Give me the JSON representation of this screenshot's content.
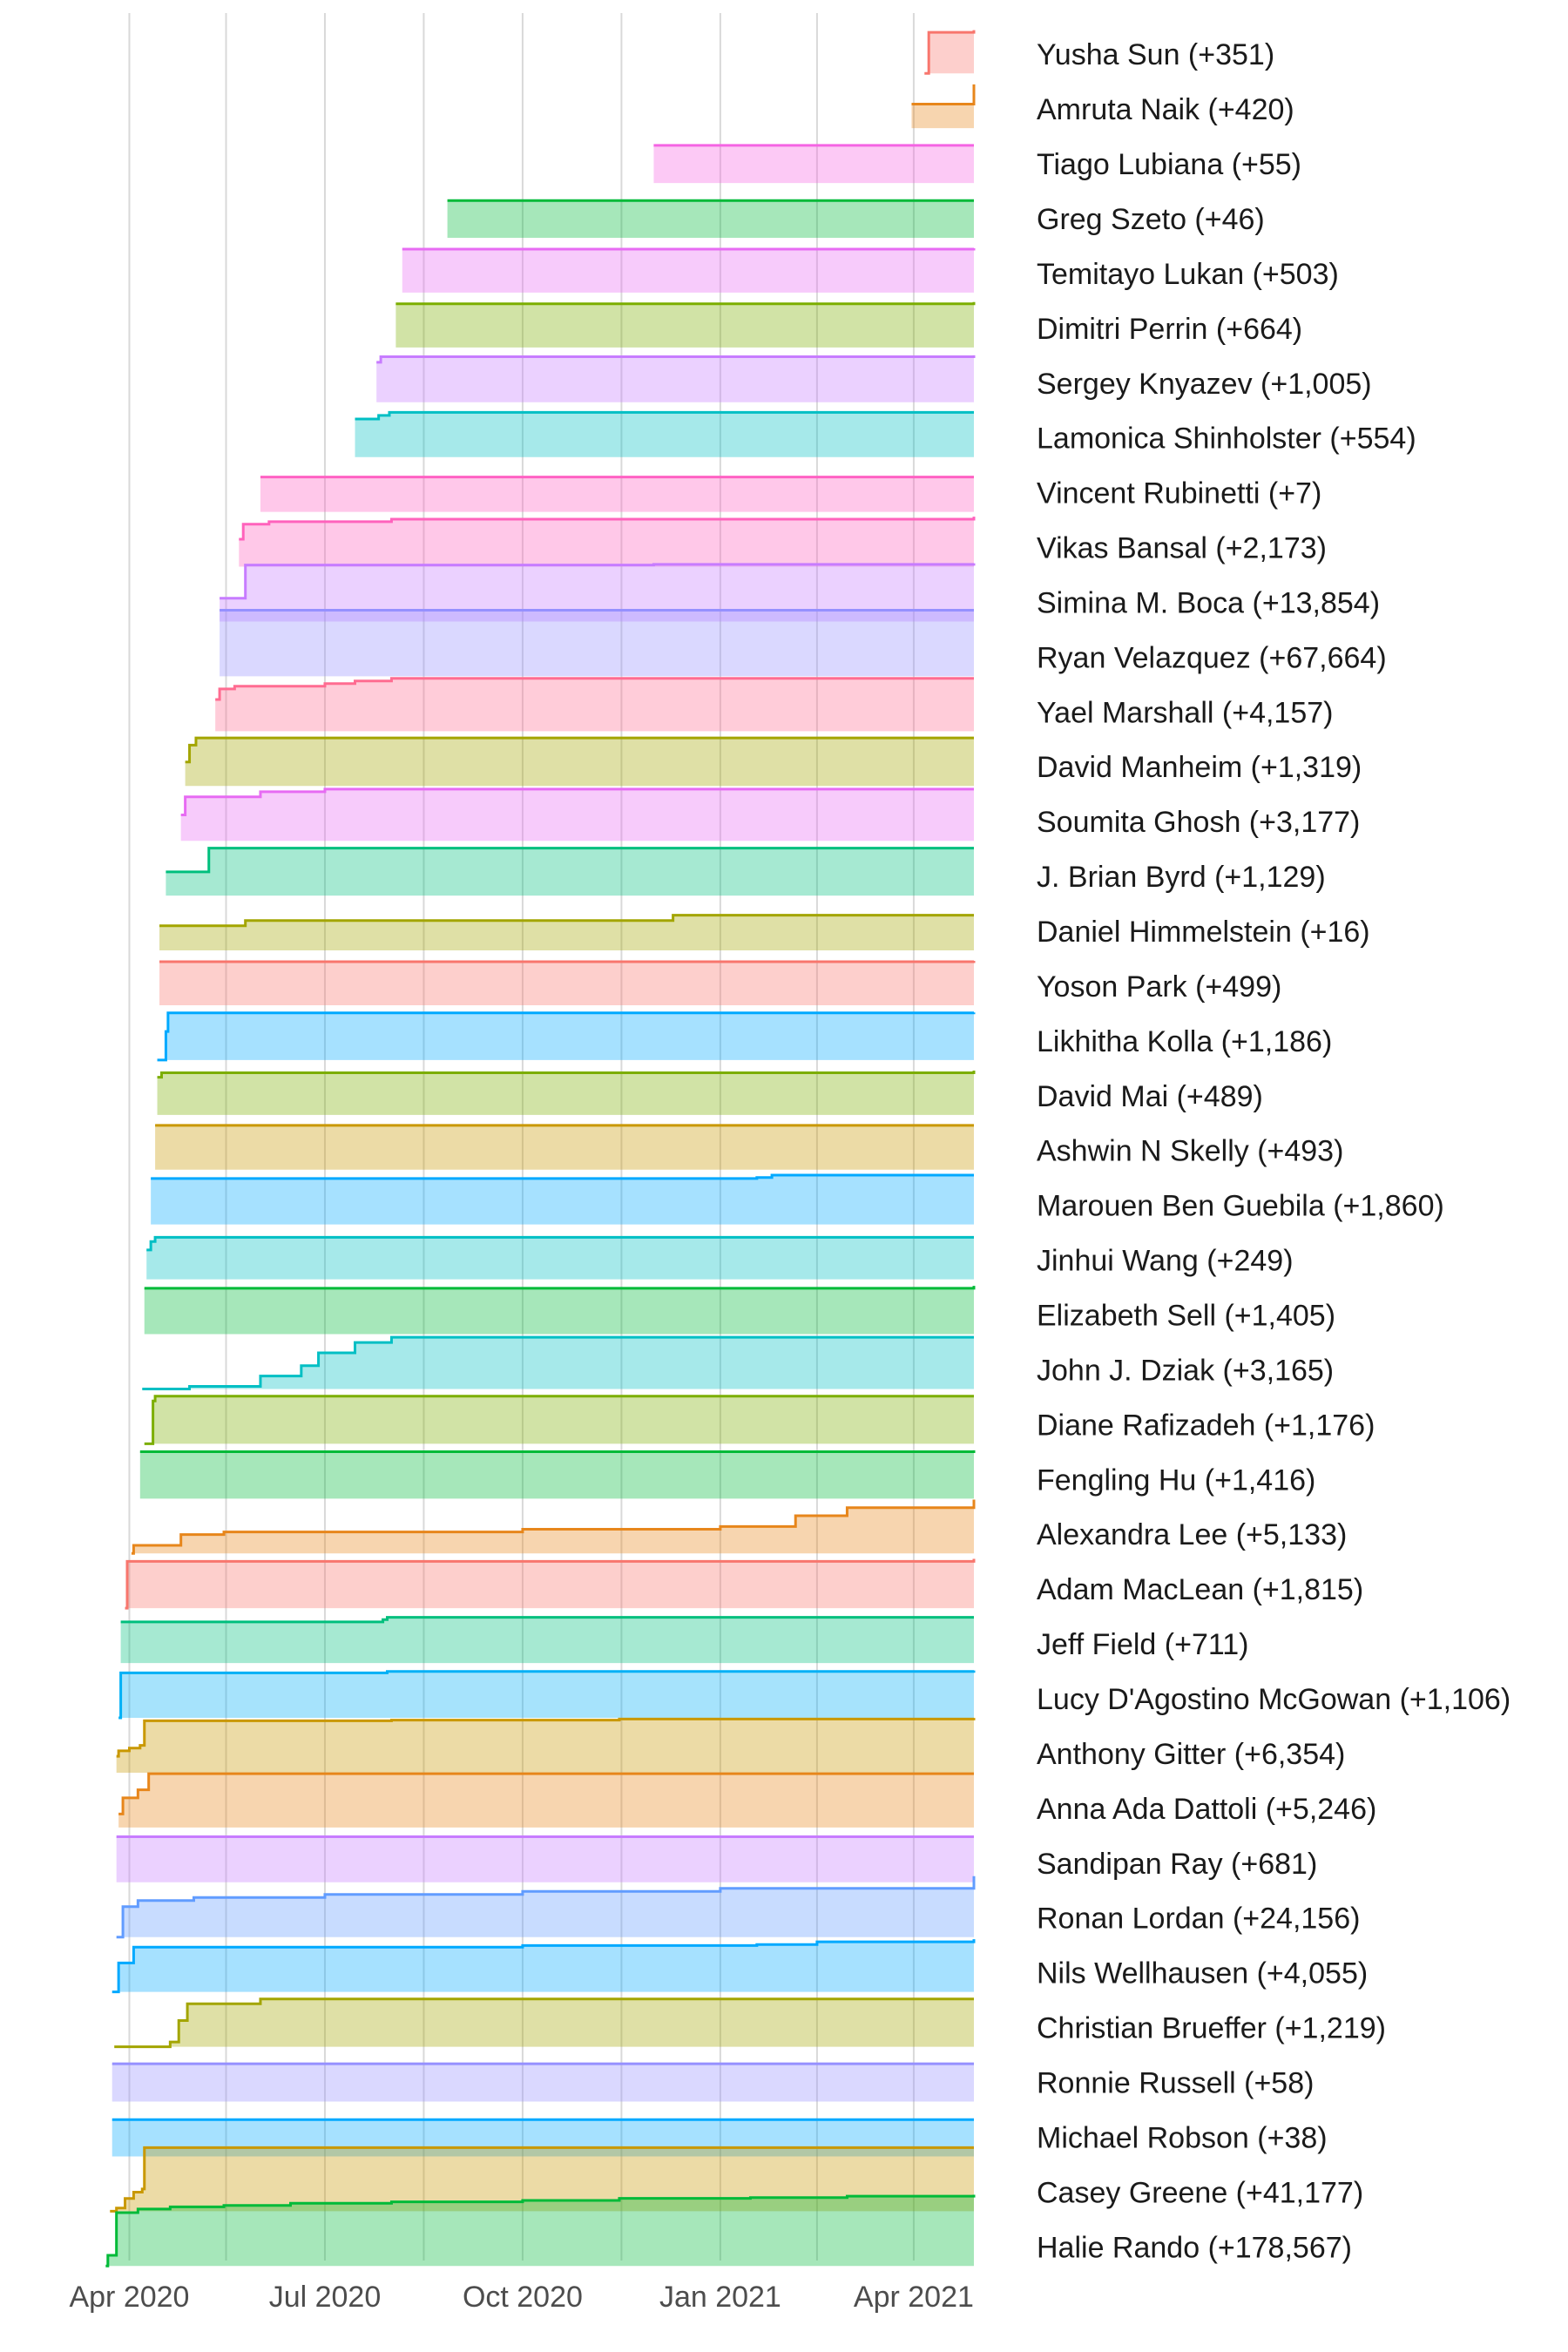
{
  "chart_data": {
    "type": "area",
    "title": "",
    "xlabel": "",
    "ylabel": "",
    "x_axis": {
      "type": "date",
      "range": [
        "2020-03-01",
        "2021-04-29"
      ],
      "ticks": [
        {
          "date": "2020-04-01",
          "label": "Apr 2020"
        },
        {
          "date": "2020-07-01",
          "label": "Jul 2020"
        },
        {
          "date": "2020-10-01",
          "label": "Oct 2020"
        },
        {
          "date": "2021-01-01",
          "label": "Jan 2021"
        },
        {
          "date": "2021-04-01",
          "label": "Apr 2021"
        }
      ],
      "minor_gridlines": [
        "2020-05-16",
        "2020-08-16",
        "2020-11-16",
        "2021-02-15"
      ]
    },
    "grid": true,
    "legend": "labels at right end of each series",
    "series": [
      {
        "name": "Yusha Sun",
        "label": "Yusha Sun (+351)",
        "color": "#F8766D",
        "total": 351,
        "points": [
          [
            "2021-04-06",
            0.0
          ],
          [
            "2021-04-08",
            0.95
          ],
          [
            "2021-04-29",
            1.0
          ]
        ]
      },
      {
        "name": "Amruta Naik",
        "label": "Amruta Naik (+420)",
        "color": "#E7861B",
        "total": 420,
        "points": [
          [
            "2021-03-31",
            0.55
          ],
          [
            "2021-04-29",
            1.0
          ]
        ]
      },
      {
        "name": "Tiago Lubiana",
        "label": "Tiago Lubiana (+55)",
        "color": "#F564E3",
        "total": 55,
        "points": [
          [
            "2020-12-01",
            1.0
          ],
          [
            "2021-04-29",
            1.0
          ]
        ]
      },
      {
        "name": "Greg Szeto",
        "label": "Greg Szeto (+46)",
        "color": "#00BA38",
        "total": 46,
        "points": [
          [
            "2020-08-27",
            1.0
          ],
          [
            "2021-04-29",
            1.0
          ]
        ]
      },
      {
        "name": "Temitayo Lukan",
        "label": "Temitayo Lukan (+503)",
        "color": "#E76BF3",
        "total": 503,
        "points": [
          [
            "2020-08-06",
            0.98
          ],
          [
            "2021-04-29",
            1.0
          ]
        ]
      },
      {
        "name": "Dimitri Perrin",
        "label": "Dimitri Perrin (+664)",
        "color": "#7CAE00",
        "total": 664,
        "points": [
          [
            "2020-08-03",
            0.96
          ],
          [
            "2021-04-29",
            1.0
          ]
        ]
      },
      {
        "name": "Sergey Knyazev",
        "label": "Sergey Knyazev (+1,005)",
        "color": "#C77CFF",
        "total": 1005,
        "points": [
          [
            "2020-07-25",
            0.85
          ],
          [
            "2020-07-27",
            0.97
          ],
          [
            "2021-04-29",
            1.0
          ]
        ]
      },
      {
        "name": "Lamonica Shinholster",
        "label": "Lamonica Shinholster (+554)",
        "color": "#00BFC4",
        "total": 554,
        "points": [
          [
            "2020-07-15",
            0.85
          ],
          [
            "2020-07-26",
            0.93
          ],
          [
            "2020-07-31",
            1.0
          ],
          [
            "2021-04-29",
            1.0
          ]
        ]
      },
      {
        "name": "Vincent Rubinetti",
        "label": "Vincent Rubinetti (+7)",
        "color": "#FF61C3",
        "total": 7,
        "points": [
          [
            "2020-06-01",
            1.0
          ],
          [
            "2021-04-29",
            1.0
          ]
        ]
      },
      {
        "name": "Vikas Bansal",
        "label": "Vikas Bansal (+2,173)",
        "color": "#FF62BC",
        "total": 2173,
        "points": [
          [
            "2020-05-22",
            0.55
          ],
          [
            "2020-05-24",
            0.85
          ],
          [
            "2020-06-05",
            0.9
          ],
          [
            "2020-08-01",
            0.95
          ],
          [
            "2021-04-29",
            1.0
          ]
        ]
      },
      {
        "name": "Simina M. Boca",
        "label": "Simina M. Boca (+13,854)",
        "color": "#C77CFF",
        "total": 13854,
        "points": [
          [
            "2020-05-13",
            0.4
          ],
          [
            "2020-05-25",
            0.97
          ],
          [
            "2020-12-01",
            0.98
          ],
          [
            "2021-04-29",
            1.0
          ]
        ]
      },
      {
        "name": "Ryan Velazquez",
        "label": "Ryan Velazquez (+67,664)",
        "color": "#9590FF",
        "total": 67664,
        "points": [
          [
            "2020-05-13",
            1.0
          ],
          [
            "2021-04-29",
            1.0
          ]
        ]
      },
      {
        "name": "Yael Marshall",
        "label": "Yael Marshall (+4,157)",
        "color": "#FF6C91",
        "total": 4157,
        "points": [
          [
            "2020-05-11",
            0.6
          ],
          [
            "2020-05-13",
            0.8
          ],
          [
            "2020-05-20",
            0.85
          ],
          [
            "2020-07-01",
            0.9
          ],
          [
            "2020-07-15",
            0.95
          ],
          [
            "2020-08-01",
            1.0
          ],
          [
            "2021-04-29",
            1.0
          ]
        ]
      },
      {
        "name": "David Manheim",
        "label": "David Manheim (+1,319)",
        "color": "#A3A500",
        "total": 1319,
        "points": [
          [
            "2020-04-27",
            0.5
          ],
          [
            "2020-04-29",
            0.85
          ],
          [
            "2020-05-02",
            1.0
          ],
          [
            "2021-04-29",
            1.0
          ]
        ]
      },
      {
        "name": "Soumita Ghosh",
        "label": "Soumita Ghosh (+3,177)",
        "color": "#E76BF3",
        "total": 3177,
        "points": [
          [
            "2020-04-25",
            0.5
          ],
          [
            "2020-04-27",
            0.85
          ],
          [
            "2020-06-01",
            0.95
          ],
          [
            "2020-07-01",
            1.0
          ],
          [
            "2021-04-29",
            1.0
          ]
        ]
      },
      {
        "name": "J. Brian Byrd",
        "label": "J. Brian Byrd (+1,129)",
        "color": "#00BF7D",
        "total": 1129,
        "points": [
          [
            "2020-04-18",
            0.5
          ],
          [
            "2020-05-08",
            1.0
          ],
          [
            "2021-04-29",
            1.0
          ]
        ]
      },
      {
        "name": "Daniel Himmelstein",
        "label": "Daniel Himmelstein (+16)",
        "color": "#A3A500",
        "total": 16,
        "points": [
          [
            "2020-04-15",
            0.7
          ],
          [
            "2020-05-25",
            0.85
          ],
          [
            "2020-12-10",
            1.0
          ],
          [
            "2021-04-29",
            1.0
          ]
        ]
      },
      {
        "name": "Yoson Park",
        "label": "Yoson Park (+499)",
        "color": "#F8766D",
        "total": 499,
        "points": [
          [
            "2020-04-15",
            0.98
          ],
          [
            "2021-04-29",
            1.0
          ]
        ]
      },
      {
        "name": "Likhitha Kolla",
        "label": "Likhitha Kolla (+1,186)",
        "color": "#00A9FF",
        "total": 1186,
        "points": [
          [
            "2020-04-14",
            0.0
          ],
          [
            "2020-04-18",
            0.6
          ],
          [
            "2020-04-19",
            0.99
          ],
          [
            "2021-04-29",
            1.0
          ]
        ]
      },
      {
        "name": "David Mai",
        "label": "David Mai (+489)",
        "color": "#7CAE00",
        "total": 489,
        "points": [
          [
            "2020-04-14",
            0.85
          ],
          [
            "2020-04-16",
            0.95
          ],
          [
            "2021-04-29",
            1.0
          ]
        ]
      },
      {
        "name": "Ashwin N Skelly",
        "label": "Ashwin N Skelly (+493)",
        "color": "#C99800",
        "total": 493,
        "points": [
          [
            "2020-04-13",
            1.0
          ],
          [
            "2021-04-29",
            1.0
          ]
        ]
      },
      {
        "name": "Marouen Ben Guebila",
        "label": "Marouen Ben Guebila (+1,860)",
        "color": "#00A9FF",
        "total": 1860,
        "points": [
          [
            "2020-04-11",
            0.93
          ],
          [
            "2021-01-18",
            0.95
          ],
          [
            "2021-01-25",
            1.0
          ],
          [
            "2021-04-29",
            1.0
          ]
        ]
      },
      {
        "name": "Jinhui Wang",
        "label": "Jinhui Wang (+249)",
        "color": "#00BFC4",
        "total": 249,
        "points": [
          [
            "2020-04-09",
            0.7
          ],
          [
            "2020-04-11",
            0.9
          ],
          [
            "2020-04-13",
            1.0
          ],
          [
            "2021-04-29",
            1.0
          ]
        ]
      },
      {
        "name": "Elizabeth Sell",
        "label": "Elizabeth Sell (+1,405)",
        "color": "#00BA38",
        "total": 1405,
        "points": [
          [
            "2020-04-08",
            0.95
          ],
          [
            "2021-04-29",
            1.0
          ]
        ]
      },
      {
        "name": "John J. Dziak",
        "label": "John J. Dziak (+3,165)",
        "color": "#00BFC4",
        "total": 3165,
        "points": [
          [
            "2020-04-07",
            0.0
          ],
          [
            "2020-04-29",
            0.05
          ],
          [
            "2020-06-01",
            0.25
          ],
          [
            "2020-06-20",
            0.45
          ],
          [
            "2020-06-28",
            0.7
          ],
          [
            "2020-07-15",
            0.9
          ],
          [
            "2020-08-01",
            1.0
          ],
          [
            "2021-04-29",
            1.0
          ]
        ]
      },
      {
        "name": "Diane Rafizadeh",
        "label": "Diane Rafizadeh (+1,176)",
        "color": "#7CAE00",
        "total": 1176,
        "points": [
          [
            "2020-04-08",
            0.0
          ],
          [
            "2020-04-12",
            0.9
          ],
          [
            "2020-04-13",
            1.0
          ],
          [
            "2021-04-29",
            1.0
          ]
        ]
      },
      {
        "name": "Fengling Hu",
        "label": "Fengling Hu (+1,416)",
        "color": "#00BA38",
        "total": 1416,
        "points": [
          [
            "2020-04-06",
            0.97
          ],
          [
            "2021-04-29",
            1.0
          ]
        ]
      },
      {
        "name": "Alexandra Lee",
        "label": "Alexandra Lee (+5,133)",
        "color": "#E7861B",
        "total": 5133,
        "points": [
          [
            "2020-04-02",
            0.0
          ],
          [
            "2020-04-03",
            0.15
          ],
          [
            "2020-04-25",
            0.35
          ],
          [
            "2020-05-15",
            0.4
          ],
          [
            "2020-10-01",
            0.45
          ],
          [
            "2021-01-01",
            0.5
          ],
          [
            "2021-02-05",
            0.7
          ],
          [
            "2021-03-01",
            0.85
          ],
          [
            "2021-04-29",
            1.0
          ]
        ]
      },
      {
        "name": "Adam MacLean",
        "label": "Adam MacLean (+1,815)",
        "color": "#F8766D",
        "total": 1815,
        "points": [
          [
            "2020-03-30",
            0.0
          ],
          [
            "2020-03-31",
            0.95
          ],
          [
            "2021-04-29",
            1.0
          ]
        ]
      },
      {
        "name": "Jeff Field",
        "label": "Jeff Field (+711)",
        "color": "#00BF7D",
        "total": 711,
        "points": [
          [
            "2020-03-28",
            0.9
          ],
          [
            "2020-07-28",
            0.95
          ],
          [
            "2020-07-30",
            1.0
          ],
          [
            "2021-04-29",
            1.0
          ]
        ]
      },
      {
        "name": "Lucy D'Agostino McGowan",
        "label": "Lucy D'Agostino McGowan (+1,106)",
        "color": "#00B0F6",
        "total": 1106,
        "points": [
          [
            "2020-03-27",
            0.0
          ],
          [
            "2020-03-28",
            0.95
          ],
          [
            "2020-07-30",
            0.98
          ],
          [
            "2021-04-29",
            1.0
          ]
        ]
      },
      {
        "name": "Anthony Gitter",
        "label": "Anthony Gitter (+6,354)",
        "color": "#C99800",
        "total": 6354,
        "points": [
          [
            "2020-03-26",
            0.3
          ],
          [
            "2020-03-27",
            0.4
          ],
          [
            "2020-04-01",
            0.45
          ],
          [
            "2020-04-06",
            0.5
          ],
          [
            "2020-04-08",
            0.95
          ],
          [
            "2020-08-01",
            0.96
          ],
          [
            "2020-11-15",
            0.98
          ],
          [
            "2021-04-29",
            1.0
          ]
        ]
      },
      {
        "name": "Anna Ada Dattoli",
        "label": "Anna Ada Dattoli (+5,246)",
        "color": "#E7861B",
        "total": 5246,
        "points": [
          [
            "2020-03-27",
            0.25
          ],
          [
            "2020-03-29",
            0.55
          ],
          [
            "2020-04-05",
            0.7
          ],
          [
            "2020-04-10",
            1.0
          ],
          [
            "2021-04-29",
            1.0
          ]
        ]
      },
      {
        "name": "Sandipan Ray",
        "label": "Sandipan Ray (+681)",
        "color": "#C77CFF",
        "total": 681,
        "points": [
          [
            "2020-03-26",
            1.0
          ],
          [
            "2021-04-29",
            1.0
          ]
        ]
      },
      {
        "name": "Ronan Lordan",
        "label": "Ronan Lordan (+24,156)",
        "color": "#619CFF",
        "total": 24156,
        "points": [
          [
            "2020-03-26",
            0.0
          ],
          [
            "2020-03-29",
            0.5
          ],
          [
            "2020-04-05",
            0.6
          ],
          [
            "2020-05-01",
            0.65
          ],
          [
            "2020-07-01",
            0.7
          ],
          [
            "2020-10-01",
            0.75
          ],
          [
            "2021-01-01",
            0.8
          ],
          [
            "2021-04-29",
            1.0
          ]
        ]
      },
      {
        "name": "Nils Wellhausen",
        "label": "Nils Wellhausen (+4,055)",
        "color": "#00A9FF",
        "total": 4055,
        "points": [
          [
            "2020-03-24",
            0.0
          ],
          [
            "2020-03-27",
            0.55
          ],
          [
            "2020-04-03",
            0.85
          ],
          [
            "2020-10-01",
            0.88
          ],
          [
            "2021-01-18",
            0.9
          ],
          [
            "2021-02-15",
            0.95
          ],
          [
            "2021-04-29",
            1.0
          ]
        ]
      },
      {
        "name": "Christian Brueffer",
        "label": "Christian Brueffer (+1,219)",
        "color": "#A3A500",
        "total": 1219,
        "points": [
          [
            "2020-03-25",
            0.0
          ],
          [
            "2020-04-20",
            0.1
          ],
          [
            "2020-04-24",
            0.55
          ],
          [
            "2020-04-28",
            0.9
          ],
          [
            "2020-06-01",
            1.0
          ],
          [
            "2021-04-29",
            1.0
          ]
        ]
      },
      {
        "name": "Ronnie Russell",
        "label": "Ronnie Russell (+58)",
        "color": "#9590FF",
        "total": 58,
        "points": [
          [
            "2020-03-24",
            1.0
          ],
          [
            "2021-04-29",
            1.0
          ]
        ]
      },
      {
        "name": "Michael Robson",
        "label": "Michael Robson (+38)",
        "color": "#00A9FF",
        "total": 38,
        "points": [
          [
            "2020-03-24",
            1.0
          ],
          [
            "2021-04-29",
            1.0
          ]
        ]
      },
      {
        "name": "Casey Greene",
        "label": "Casey Greene (+41,177)",
        "color": "#C99800",
        "total": 41177,
        "points": [
          [
            "2020-03-23",
            0.0
          ],
          [
            "2020-03-26",
            0.05
          ],
          [
            "2020-03-30",
            0.2
          ],
          [
            "2020-04-03",
            0.3
          ],
          [
            "2020-04-07",
            0.35
          ],
          [
            "2020-04-08",
            1.0
          ],
          [
            "2021-04-29",
            1.0
          ]
        ]
      },
      {
        "name": "Halie Rando",
        "label": "Halie Rando (+178,567)",
        "color": "#00BA38",
        "total": 178567,
        "points": [
          [
            "2020-03-21",
            0.0
          ],
          [
            "2020-03-22",
            0.15
          ],
          [
            "2020-03-26",
            0.75
          ],
          [
            "2020-04-05",
            0.8
          ],
          [
            "2020-04-20",
            0.83
          ],
          [
            "2020-05-15",
            0.85
          ],
          [
            "2020-06-15",
            0.88
          ],
          [
            "2020-08-01",
            0.9
          ],
          [
            "2020-10-01",
            0.92
          ],
          [
            "2020-11-15",
            0.95
          ],
          [
            "2021-01-15",
            0.96
          ],
          [
            "2021-03-01",
            0.98
          ],
          [
            "2021-04-29",
            1.0
          ]
        ]
      }
    ]
  }
}
